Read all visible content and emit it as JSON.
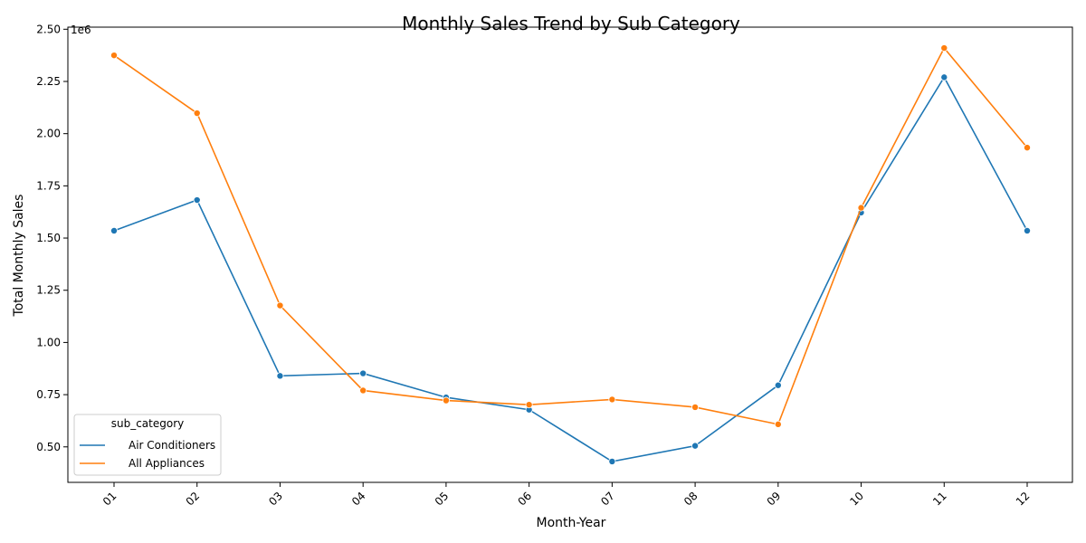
{
  "chart_data": {
    "type": "line",
    "title": "Monthly Sales Trend by Sub Category",
    "xlabel": "Month-Year",
    "ylabel": "Total Monthly Sales",
    "y_offset_label": "1e6",
    "categories": [
      "01",
      "02",
      "03",
      "04",
      "05",
      "06",
      "07",
      "08",
      "09",
      "10",
      "11",
      "12"
    ],
    "ylim": [
      330000,
      2510000
    ],
    "yticks": [
      500000,
      750000,
      1000000,
      1250000,
      1500000,
      1750000,
      2000000,
      2250000,
      2500000
    ],
    "ytick_labels": [
      "0.50",
      "0.75",
      "1.00",
      "1.25",
      "1.50",
      "1.75",
      "2.00",
      "2.25",
      "2.50"
    ],
    "grid": false,
    "legend": {
      "title": "sub_category",
      "placement": "lower-left"
    },
    "series": [
      {
        "name": "Air Conditioners",
        "color": "#1f77b4",
        "values": [
          1535000,
          1682000,
          840000,
          852000,
          737000,
          678000,
          430000,
          505000,
          795000,
          1622000,
          2270000,
          1535000
        ]
      },
      {
        "name": "All Appliances",
        "color": "#ff7f0e",
        "values": [
          2375000,
          2098000,
          1177000,
          770000,
          722000,
          702000,
          727000,
          690000,
          608000,
          1645000,
          2410000,
          1933000
        ]
      }
    ]
  }
}
